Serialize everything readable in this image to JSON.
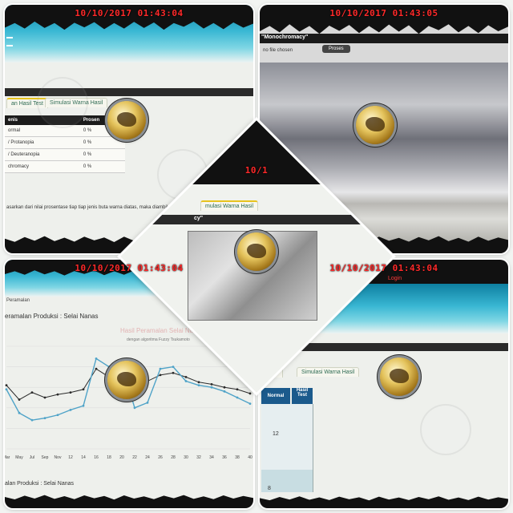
{
  "stamps": {
    "tl": "10/10/2017 01:43:04",
    "tr": "10/10/2017 01:43:05",
    "bl": "10/10/2017 01:43:04",
    "br": "10/10/2017 01:43:04",
    "center": "10/1"
  },
  "tl": {
    "tabs": [
      "an Hasil Test",
      "Simulasi Warna Hasil"
    ],
    "table_headers": [
      "enis",
      "Prosen"
    ],
    "rows": [
      {
        "jenis": "ormal",
        "prosen": "0 %"
      },
      {
        "jenis": "/ Protanopia",
        "prosen": "0 %"
      },
      {
        "jenis": "/ Deuteranopia",
        "prosen": "0 %"
      },
      {
        "jenis": "chromacy",
        "prosen": "0 %"
      }
    ],
    "footer_note": "asarkan dari nilai prosentase tiap tiap jenis buta warna diatas, maka diambil ke"
  },
  "tr": {
    "label": "\"Monochromacy\"",
    "file_text": "no file chosen",
    "button": "Proses"
  },
  "center": {
    "tab": "mulasi Warna Hasil",
    "label": "cy\""
  },
  "bl": {
    "breadcrumb": "Peramalan",
    "heading": "eramalan Produksi : Selai Nanas",
    "chart_title": "Hasil Peramalan Selai Nan",
    "chart_subtitle": "dengan algoritma Fuzzy Tsukamoto",
    "x_ticks": [
      "Mar",
      "May",
      "Jul",
      "Sep",
      "Nov",
      "12",
      "14",
      "16",
      "18",
      "20",
      "22",
      "24",
      "26",
      "28",
      "30",
      "32",
      "34",
      "36",
      "38",
      "40"
    ],
    "footer": "alan Produksi : Selai Nanas"
  },
  "br": {
    "menu_items": [
      "um",
      "Login"
    ],
    "tabs": [
      "l test",
      "Simulasi Warna Hasil"
    ],
    "table_headers": [
      "Normal",
      "Hasil Test"
    ],
    "values": [
      "12",
      "8"
    ]
  },
  "chart_data": {
    "type": "line",
    "title": "Hasil Peramalan Selai Nan",
    "subtitle": "dengan algoritma Fuzzy Tsukamoto",
    "categories": [
      "Mar",
      "May",
      "Jul",
      "Sep",
      "Nov",
      "12",
      "14",
      "16",
      "18",
      "20",
      "22",
      "24",
      "26",
      "28",
      "30",
      "32",
      "34",
      "36",
      "38",
      "40"
    ],
    "series": [
      {
        "values": [
          62,
          48,
          55,
          50,
          53,
          55,
          58,
          78,
          70,
          73,
          68,
          66,
          72,
          74,
          70,
          65,
          63,
          60,
          58,
          54
        ]
      },
      {
        "values": [
          58,
          35,
          28,
          30,
          33,
          38,
          42,
          88,
          80,
          82,
          40,
          45,
          78,
          80,
          66,
          62,
          60,
          56,
          50,
          44
        ]
      }
    ],
    "colors": [
      "#2b2b2b",
      "#4fa3c8"
    ],
    "ylim": [
      0,
      100
    ],
    "grid": true
  }
}
